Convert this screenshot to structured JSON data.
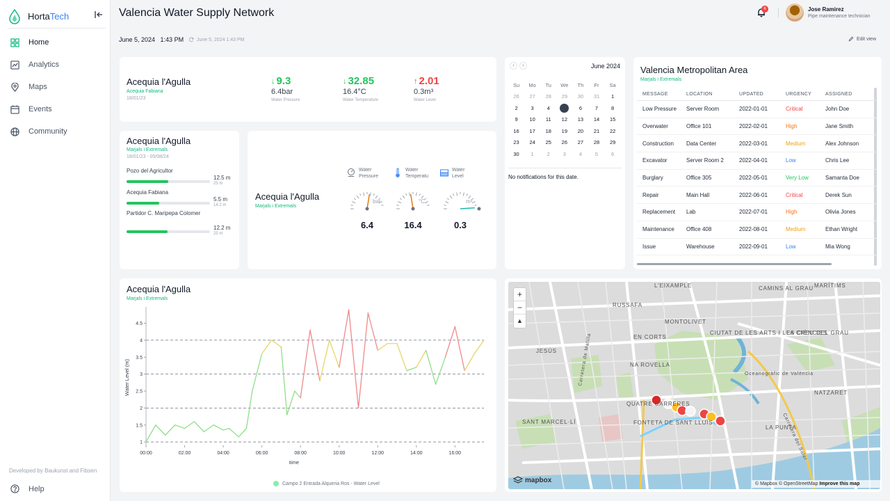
{
  "brand": {
    "part1": "Horta",
    "part2": "Tech"
  },
  "nav": {
    "home": "Home",
    "analytics": "Analytics",
    "maps": "Maps",
    "events": "Events",
    "community": "Community"
  },
  "footer": {
    "developed": "Developed by Baukunst and Fibsen",
    "help": "Help"
  },
  "header": {
    "title": "Valencia Water Supply Network",
    "notifications": "6",
    "user_name": "Jose Ramirez",
    "user_role": "Pipe maintenance technician"
  },
  "toolbar": {
    "date": "June 5, 2024   1:43 PM",
    "sync": "June 5, 2024 1:43 PM",
    "edit": "Edit view"
  },
  "metric_card": {
    "title": "Acequia l'Agulla",
    "subtitle": "Acequia Fabiana",
    "date": "18/01/23",
    "metrics": [
      {
        "value": "9.3",
        "sub": "6.4bar",
        "label": "Water Pressure",
        "arrow": "↓",
        "color": "#22c55e"
      },
      {
        "value": "32.85",
        "sub": "16.4°C",
        "label": "Water Temperature",
        "arrow": "↓",
        "color": "#22c55e"
      },
      {
        "value": "2.01",
        "sub": "0.3m³",
        "label": "Water Level",
        "arrow": "↑",
        "color": "#ef4444"
      }
    ]
  },
  "levels_card": {
    "title": "Acequia l'Agulla",
    "subtitle": "Marjals i Extremals",
    "dates": "18/01/23 - 05/08/24",
    "items": [
      {
        "name": "Pozo del Agricultor",
        "value": "12.5 m",
        "sub": "25 m",
        "fill": 0.5
      },
      {
        "name": "Acequia Fabiana",
        "value": "5.5 m",
        "sub": "14.2 m",
        "fill": 0.39
      },
      {
        "name": "Partidor C. Maripepa Colomer",
        "value": "12.2 m",
        "sub": "25 m",
        "fill": 0.49
      }
    ]
  },
  "gauge_card": {
    "title": "Acequia l'Agulla",
    "subtitle": "Marjals i Extremals",
    "gauges": [
      {
        "label1": "Water",
        "label2": "Pressure",
        "unit": "bar",
        "value": "6.4",
        "fraction": 0.55
      },
      {
        "label1": "Water",
        "label2": "Temperatu",
        "unit": "°C",
        "value": "16.4",
        "fraction": 0.45
      },
      {
        "label1": "Water",
        "label2": "Level",
        "unit": "m³",
        "value": "0.3",
        "fraction": 0.98
      }
    ]
  },
  "calendar": {
    "month": "June 2024",
    "weekdays": [
      "Su",
      "Mo",
      "Tu",
      "We",
      "Th",
      "Fr",
      "Sa"
    ],
    "weeks": [
      [
        "26",
        "27",
        "28",
        "29",
        "30",
        "31",
        "1"
      ],
      [
        "2",
        "3",
        "4",
        "5",
        "6",
        "7",
        "8"
      ],
      [
        "9",
        "10",
        "11",
        "12",
        "13",
        "14",
        "15"
      ],
      [
        "16",
        "17",
        "18",
        "19",
        "20",
        "21",
        "22"
      ],
      [
        "23",
        "24",
        "25",
        "26",
        "27",
        "28",
        "29"
      ],
      [
        "30",
        "1",
        "2",
        "3",
        "4",
        "5",
        "6"
      ]
    ],
    "selected": "5",
    "note": "No notifications for this date."
  },
  "events_table": {
    "title": "Valencia Metropolitan Area",
    "subtitle": "Marjals i Extremals",
    "headers": [
      "MESSAGE",
      "LOCATION",
      "UPDATED",
      "URGENCY",
      "ASSIGNED"
    ],
    "rows": [
      [
        "Low Pressure",
        "Server Room",
        "2022-01-01",
        "Critical",
        "John Doe"
      ],
      [
        "Overwater",
        "Office 101",
        "2022-02-01",
        "High",
        "Jane Smith"
      ],
      [
        "Construction",
        "Data Center",
        "2022-03-01",
        "Medium",
        "Alex Johnson"
      ],
      [
        "Excavator",
        "Server Room 2",
        "2022-04-01",
        "Low",
        "Chris Lee"
      ],
      [
        "Burglary",
        "Office 305",
        "2022-05-01",
        "Very Low",
        "Samanta Doe"
      ],
      [
        "Repair",
        "Main Hall",
        "2022-06-01",
        "Critical",
        "Derek Sun"
      ],
      [
        "Replacement",
        "Lab",
        "2022-07-01",
        "High",
        "Olivia Jones"
      ],
      [
        "Maintenance",
        "Office 408",
        "2022-08-01",
        "Medium",
        "Ethan Wright"
      ],
      [
        "Issue",
        "Warehouse",
        "2022-09-01",
        "Low",
        "Mia Wong"
      ]
    ],
    "urgency_colors": {
      "Critical": "#ef4444",
      "High": "#f97316",
      "Medium": "#f59e0b",
      "Low": "#3b82f6",
      "Very Low": "#22c55e"
    }
  },
  "chart_card": {
    "title": "Acequia l'Agulla",
    "subtitle": "Marjals i Extremals"
  },
  "chart_data": {
    "type": "line",
    "xlabel": "time",
    "ylabel": "Water Level (m)",
    "xlim": [
      0,
      17.5
    ],
    "ylim": [
      0.9,
      4.9
    ],
    "xticks": [
      "00:00",
      "02:00",
      "04:00",
      "06:00",
      "08:00",
      "10:00",
      "12:00",
      "14:00",
      "16:00"
    ],
    "yticks": [
      1,
      1.5,
      2,
      2.5,
      3,
      3.5,
      4,
      4.5
    ],
    "dashed_gridlines": [
      1,
      2,
      3,
      4
    ],
    "series": [
      {
        "name": "Campo 2 Entrada Alqueria Ros - Water Level",
        "x": [
          0,
          0.5,
          1,
          1.5,
          2,
          2.5,
          3,
          3.5,
          4,
          4.3,
          4.8,
          5.2,
          5.5,
          6,
          6.5,
          7,
          7.3,
          7.7,
          8,
          8.5,
          9,
          9.5,
          10,
          10.5,
          11,
          11.5,
          12,
          12.5,
          13,
          13.5,
          14,
          14.5,
          15,
          15.5,
          16,
          16.5,
          17,
          17.5
        ],
        "values": [
          1.0,
          1.5,
          1.2,
          1.5,
          1.4,
          1.6,
          1.3,
          1.5,
          1.35,
          1.4,
          1.15,
          1.4,
          2.5,
          3.6,
          4.0,
          3.8,
          1.8,
          2.5,
          2.3,
          4.3,
          2.8,
          4.0,
          3.2,
          4.9,
          2.0,
          4.8,
          3.7,
          3.9,
          3.9,
          3.1,
          3.2,
          3.7,
          2.7,
          3.5,
          4.4,
          3.1,
          3.6,
          4.0
        ]
      }
    ]
  },
  "map": {
    "attribution": "© Mapbox © OpenStreetMap",
    "improve": "Improve this map",
    "logo": "mapbox",
    "labels": [
      {
        "text": "L'EIXAMPLE"
      },
      {
        "text": "CAMINS AL GRAU"
      },
      {
        "text": "MARÍTIMS"
      },
      {
        "text": "RUSSAFA"
      },
      {
        "text": "MONTOLIVET"
      },
      {
        "text": "EN CORTS"
      },
      {
        "text": "CIUTAT DE LES ARTS I LES CIÈNCIES"
      },
      {
        "text": "LA CREU DEL GRAU"
      },
      {
        "text": "JESÚS"
      },
      {
        "text": "NA ROVELLA"
      },
      {
        "text": "Oceanogràfic de València"
      },
      {
        "text": "NATZARET"
      },
      {
        "text": "QUATRE CARRERES"
      },
      {
        "text": "FONTETA DE SANT LLUÍS"
      },
      {
        "text": "SANT MARCEL·LÍ"
      },
      {
        "text": "LA PUNTA"
      },
      {
        "text": "Carretera de Malilla"
      },
      {
        "text": "Carretera del Saler"
      }
    ]
  }
}
